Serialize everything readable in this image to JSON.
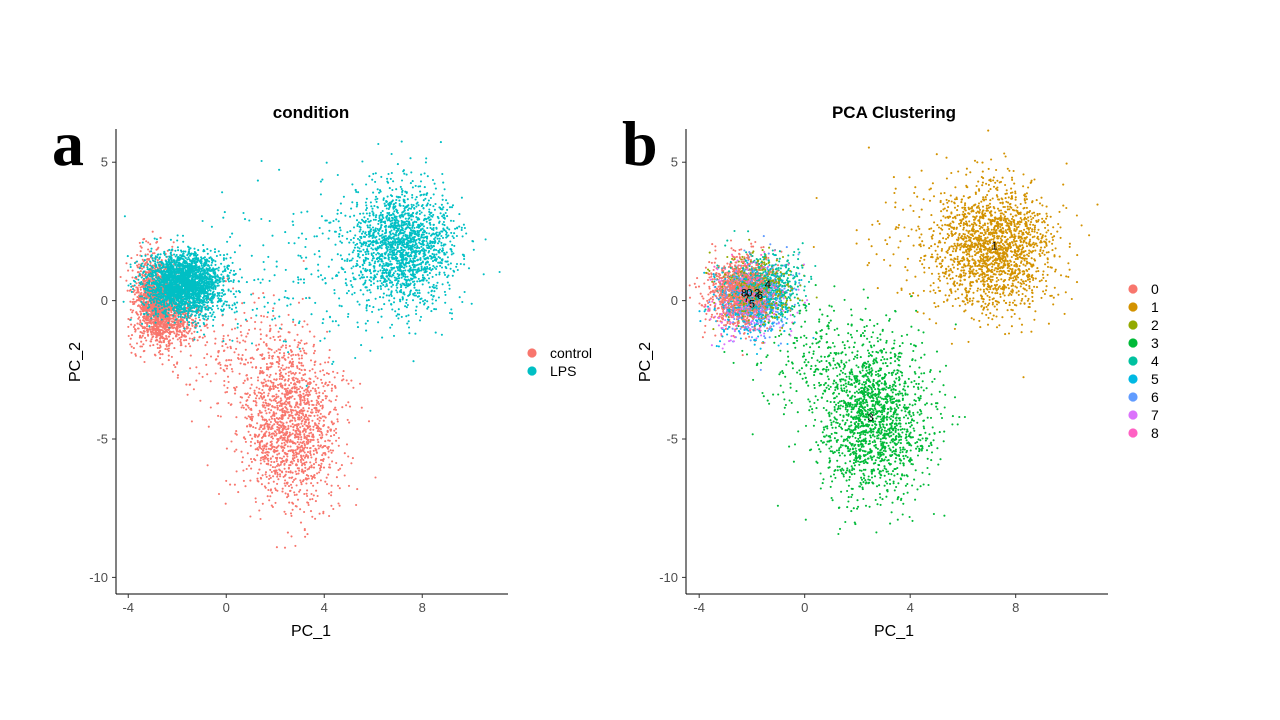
{
  "panel_letters": [
    "a",
    "b"
  ],
  "chart_data": [
    {
      "type": "scatter",
      "title": "condition",
      "xlabel": "PC_1",
      "ylabel": "PC_2",
      "xlim": [
        -4.5,
        11.5
      ],
      "ylim": [
        -10.6,
        6.2
      ],
      "xticks": [
        -4,
        0,
        4,
        8
      ],
      "yticks": [
        5,
        0,
        -5,
        -10
      ],
      "grid": false,
      "legend_position": "right",
      "series": [
        {
          "name": "control",
          "color": "#F8766D",
          "clusters": [
            {
              "x": -2.9,
              "y": 0.0,
              "sx": 0.45,
              "sy": 0.8,
              "n": 1300
            },
            {
              "x": -2.2,
              "y": -0.6,
              "sx": 0.6,
              "sy": 0.5,
              "n": 500
            },
            {
              "x": 2.7,
              "y": -4.6,
              "sx": 1.0,
              "sy": 1.4,
              "n": 1500
            },
            {
              "x": 0.5,
              "y": -2.0,
              "sx": 1.6,
              "sy": 1.1,
              "n": 250
            }
          ]
        },
        {
          "name": "LPS",
          "color": "#00BFC4",
          "clusters": [
            {
              "x": -1.7,
              "y": 0.6,
              "sx": 0.75,
              "sy": 0.55,
              "n": 2600
            },
            {
              "x": 7.2,
              "y": 2.0,
              "sx": 1.1,
              "sy": 1.1,
              "n": 1800
            },
            {
              "x": 3.0,
              "y": 1.0,
              "sx": 2.5,
              "sy": 1.5,
              "n": 220
            }
          ]
        }
      ]
    },
    {
      "type": "scatter",
      "title": "PCA Clustering",
      "xlabel": "PC_1",
      "ylabel": "PC_2",
      "xlim": [
        -4.5,
        11.5
      ],
      "ylim": [
        -10.6,
        6.2
      ],
      "xticks": [
        -4,
        0,
        4,
        8
      ],
      "yticks": [
        5,
        0,
        -5,
        -10
      ],
      "grid": false,
      "legend_position": "right",
      "series": [
        {
          "name": "0",
          "color": "#F8766D",
          "label_xy": [
            -2.1,
            0.3
          ],
          "clusters": [
            {
              "x": -2.4,
              "y": 0.3,
              "sx": 0.6,
              "sy": 0.6,
              "n": 1100
            }
          ]
        },
        {
          "name": "1",
          "color": "#D39200",
          "label_xy": [
            7.2,
            2.0
          ],
          "clusters": [
            {
              "x": 7.2,
              "y": 1.9,
              "sx": 1.15,
              "sy": 1.15,
              "n": 1800
            },
            {
              "x": 4.5,
              "y": 2.5,
              "sx": 1.5,
              "sy": 1.3,
              "n": 120
            }
          ]
        },
        {
          "name": "2",
          "color": "#93AA00",
          "label_xy": [
            -1.8,
            0.3
          ],
          "clusters": [
            {
              "x": -1.8,
              "y": 0.4,
              "sx": 0.7,
              "sy": 0.6,
              "n": 450
            }
          ]
        },
        {
          "name": "3",
          "color": "#00BA38",
          "label_xy": [
            2.5,
            -4.2
          ],
          "clusters": [
            {
              "x": 2.6,
              "y": -4.3,
              "sx": 1.05,
              "sy": 1.4,
              "n": 1600
            },
            {
              "x": 0.8,
              "y": -2.0,
              "sx": 1.4,
              "sy": 1.0,
              "n": 250
            }
          ]
        },
        {
          "name": "4",
          "color": "#00C19F",
          "label_xy": [
            -1.4,
            0.6
          ],
          "clusters": [
            {
              "x": -1.4,
              "y": 0.6,
              "sx": 0.75,
              "sy": 0.6,
              "n": 450
            }
          ]
        },
        {
          "name": "5",
          "color": "#00B9E3",
          "label_xy": [
            -2.0,
            -0.1
          ],
          "clusters": [
            {
              "x": -2.0,
              "y": 0.0,
              "sx": 0.7,
              "sy": 0.65,
              "n": 400
            }
          ]
        },
        {
          "name": "6",
          "color": "#619CFF",
          "label_xy": [
            -1.7,
            0.2
          ],
          "clusters": [
            {
              "x": -1.9,
              "y": 0.1,
              "sx": 0.7,
              "sy": 0.7,
              "n": 300
            }
          ]
        },
        {
          "name": "7",
          "color": "#DB72FB",
          "label_xy": [
            -2.2,
            0.1
          ],
          "clusters": [
            {
              "x": -2.0,
              "y": -0.2,
              "sx": 0.8,
              "sy": 0.8,
              "n": 180
            }
          ]
        },
        {
          "name": "8",
          "color": "#FF61C3",
          "label_xy": [
            -2.3,
            0.3
          ],
          "clusters": [
            {
              "x": -2.2,
              "y": 0.2,
              "sx": 0.7,
              "sy": 0.7,
              "n": 120
            }
          ]
        }
      ]
    }
  ]
}
